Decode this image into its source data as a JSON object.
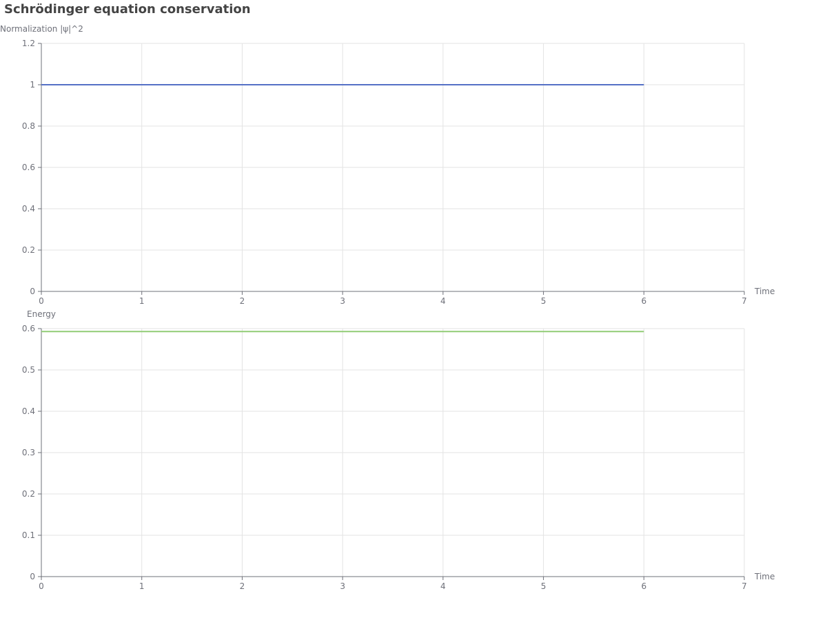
{
  "title": "Schrödinger equation conservation",
  "chart_data": [
    {
      "type": "line",
      "ylabel": "Normalization |ψ|^2",
      "xlabel": "Time",
      "xlim": [
        0,
        7
      ],
      "ylim": [
        0,
        1.2
      ],
      "x_ticks": [
        0,
        1,
        2,
        3,
        4,
        5,
        6,
        7
      ],
      "y_ticks": [
        0,
        0.2,
        0.4,
        0.6,
        0.8,
        1,
        1.2
      ],
      "grid": true,
      "series": [
        {
          "color": "#5470c6",
          "x": [
            0,
            1,
            2,
            3,
            4,
            5,
            6
          ],
          "y": [
            1,
            1,
            1,
            1,
            1,
            1,
            1
          ]
        }
      ]
    },
    {
      "type": "line",
      "ylabel": "Energy",
      "xlabel": "Time",
      "xlim": [
        0,
        7
      ],
      "ylim": [
        0,
        0.6
      ],
      "x_ticks": [
        0,
        1,
        2,
        3,
        4,
        5,
        6,
        7
      ],
      "y_ticks": [
        0,
        0.1,
        0.2,
        0.3,
        0.4,
        0.5,
        0.6
      ],
      "grid": true,
      "series": [
        {
          "color": "#91cc75",
          "x": [
            0,
            1,
            2,
            3,
            4,
            5,
            6
          ],
          "y": [
            0.593,
            0.593,
            0.593,
            0.593,
            0.593,
            0.593,
            0.593
          ]
        }
      ]
    }
  ]
}
